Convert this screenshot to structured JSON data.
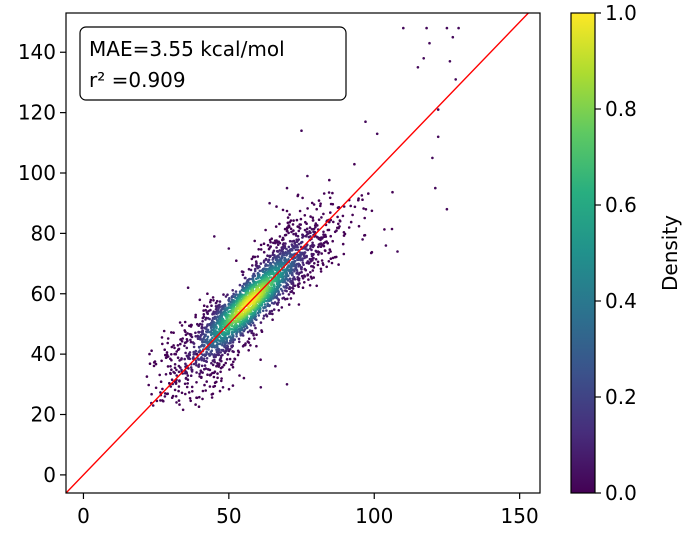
{
  "chart_data": {
    "type": "scatter",
    "title": "",
    "xlabel": "",
    "ylabel": "",
    "xlim": [
      -6,
      157
    ],
    "ylim": [
      -6,
      153
    ],
    "x_ticks": [
      0,
      50,
      100,
      150
    ],
    "y_ticks": [
      0,
      20,
      40,
      60,
      80,
      100,
      120,
      140
    ],
    "grid": false,
    "reference_line": {
      "type": "y=x",
      "color": "#ff0000"
    },
    "annotation": {
      "mae_text": "MAE=3.55 kcal/mol",
      "r2_text": "r² =0.909",
      "mae_value": 3.55,
      "mae_unit": "kcal/mol",
      "r2_value": 0.909,
      "location": "upper-left"
    },
    "colorbar": {
      "label": "Density",
      "colormap": "viridis",
      "range": [
        0.0,
        1.0
      ],
      "ticks": [
        0.0,
        0.2,
        0.4,
        0.6,
        0.8,
        1.0
      ],
      "tick_labels": [
        "0.0",
        "0.2",
        "0.4",
        "0.6",
        "0.8",
        "1.0"
      ]
    },
    "point_cloud": {
      "description_of_density": "Dense core centred near (57, 57) lying along y=x, spreading from about x=22 to x=132",
      "x_range": [
        22,
        132
      ],
      "y_range": [
        22,
        149
      ],
      "peak_density_at": [
        57,
        57
      ]
    },
    "notable_points": [
      {
        "x": 110,
        "y": 148
      },
      {
        "x": 118,
        "y": 148
      },
      {
        "x": 125,
        "y": 148
      },
      {
        "x": 129,
        "y": 148
      },
      {
        "x": 119,
        "y": 143
      },
      {
        "x": 127,
        "y": 145
      },
      {
        "x": 117,
        "y": 138
      },
      {
        "x": 126,
        "y": 137
      },
      {
        "x": 115,
        "y": 135
      },
      {
        "x": 128,
        "y": 131
      },
      {
        "x": 125,
        "y": 88
      },
      {
        "x": 121,
        "y": 95
      },
      {
        "x": 120,
        "y": 105
      },
      {
        "x": 122,
        "y": 112
      },
      {
        "x": 122,
        "y": 121
      },
      {
        "x": 96,
        "y": 78
      },
      {
        "x": 104,
        "y": 76
      },
      {
        "x": 108,
        "y": 74
      },
      {
        "x": 101,
        "y": 113
      },
      {
        "x": 97,
        "y": 117
      },
      {
        "x": 77,
        "y": 99
      },
      {
        "x": 75,
        "y": 114
      },
      {
        "x": 70,
        "y": 95
      },
      {
        "x": 64,
        "y": 90
      },
      {
        "x": 45,
        "y": 79
      },
      {
        "x": 50,
        "y": 75
      },
      {
        "x": 40,
        "y": 58
      },
      {
        "x": 36,
        "y": 62
      },
      {
        "x": 66,
        "y": 36
      },
      {
        "x": 70,
        "y": 30
      },
      {
        "x": 61,
        "y": 29
      },
      {
        "x": 48,
        "y": 29
      },
      {
        "x": 33,
        "y": 31
      },
      {
        "x": 28,
        "y": 26
      },
      {
        "x": 24,
        "y": 23
      },
      {
        "x": 32,
        "y": 24
      },
      {
        "x": 37,
        "y": 44
      },
      {
        "x": 39,
        "y": 40
      }
    ]
  }
}
